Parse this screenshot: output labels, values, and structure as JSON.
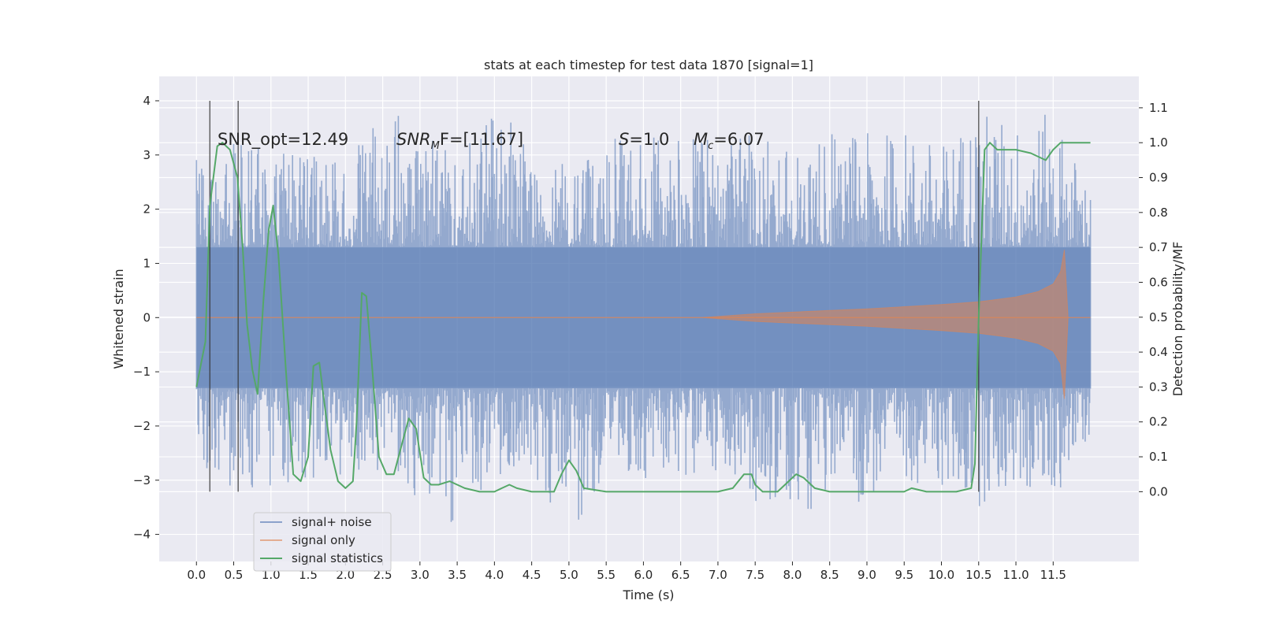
{
  "chart_data": {
    "type": "line",
    "title": "stats at each timestep for test data 1870 [signal=1]",
    "xlabel": "Time (s)",
    "ylabel_left": "Whitened strain",
    "ylabel_right": "Detection probability/MF",
    "xlim": [
      -0.5,
      12.65
    ],
    "ylim_left": [
      -4.5,
      4.45
    ],
    "ylim_right": [
      -0.2,
      1.19
    ],
    "x_ticks": [
      "0.0",
      "0.5",
      "1.0",
      "1.5",
      "2.0",
      "2.5",
      "3.0",
      "3.5",
      "4.0",
      "4.5",
      "5.0",
      "5.5",
      "6.0",
      "6.5",
      "7.0",
      "7.5",
      "8.0",
      "8.5",
      "9.0",
      "9.5",
      "10.0",
      "10.5",
      "11.0",
      "11.5"
    ],
    "y_ticks_left": [
      "4",
      "3",
      "2",
      "1",
      "0",
      "−1",
      "−2",
      "−3",
      "−4"
    ],
    "y_ticks_right": [
      "1.1",
      "1.0",
      "0.9",
      "0.8",
      "0.7",
      "0.6",
      "0.5",
      "0.4",
      "0.3",
      "0.2",
      "0.1",
      "0.0"
    ],
    "grid": true,
    "legend_position": "bottom-left",
    "annotations": {
      "snr_opt": "SNR_opt=12.49",
      "snr_mf_sym": "SNR",
      "snr_mf_sub": "M",
      "snr_mf_rest": "F=[11.67]",
      "s_sym": "S",
      "s_rest": "=1.0",
      "mc_sym": "M",
      "mc_sub": "c",
      "mc_rest": "=6.07"
    },
    "vertical_lines_x": [
      0.18,
      0.56,
      10.5
    ],
    "series": [
      {
        "name": "signal+ noise",
        "color": "#4c72b0",
        "envelope_x": [
          0.0,
          0.5,
          1.0,
          1.5,
          2.0,
          2.5,
          3.0,
          3.5,
          4.0,
          4.5,
          5.0,
          5.5,
          6.0,
          6.5,
          7.0,
          7.5,
          8.0,
          8.5,
          9.0,
          9.5,
          10.0,
          10.5,
          11.0,
          11.5,
          12.0
        ],
        "upper": [
          3.2,
          3.4,
          3.1,
          3.0,
          2.9,
          4.05,
          3.3,
          3.2,
          4.0,
          3.2,
          3.0,
          3.3,
          3.3,
          3.4,
          3.5,
          3.4,
          3.2,
          3.5,
          3.4,
          3.5,
          3.2,
          3.9,
          3.6,
          3.8,
          2.4
        ],
        "lower": [
          -2.7,
          -3.3,
          -3.2,
          -3.0,
          -3.0,
          -3.0,
          -3.4,
          -3.9,
          -3.0,
          -2.8,
          -4.1,
          -3.0,
          -3.1,
          -3.0,
          -3.1,
          -3.4,
          -3.5,
          -3.6,
          -3.4,
          -3.0,
          -3.2,
          -3.5,
          -3.2,
          -3.4,
          -2.2
        ]
      },
      {
        "name": "signal only",
        "color": "#dd8452",
        "envelope_x": [
          6.8,
          7.5,
          8.0,
          8.5,
          9.0,
          9.5,
          10.0,
          10.5,
          11.0,
          11.3,
          11.5,
          11.6,
          11.65,
          11.7
        ],
        "upper": [
          0.0,
          0.07,
          0.1,
          0.13,
          0.16,
          0.2,
          0.24,
          0.29,
          0.38,
          0.48,
          0.62,
          0.85,
          1.25,
          0.0
        ],
        "lower": [
          0.0,
          -0.07,
          -0.1,
          -0.13,
          -0.16,
          -0.2,
          -0.24,
          -0.29,
          -0.38,
          -0.48,
          -0.62,
          -0.85,
          -1.5,
          0.0
        ]
      },
      {
        "name": "signal statistics",
        "color": "#55a868",
        "axis": "right",
        "x": [
          0.0,
          0.12,
          0.18,
          0.28,
          0.35,
          0.45,
          0.55,
          0.62,
          0.68,
          0.75,
          0.82,
          0.9,
          0.97,
          1.03,
          1.1,
          1.2,
          1.3,
          1.4,
          1.5,
          1.57,
          1.65,
          1.72,
          1.8,
          1.9,
          2.0,
          2.1,
          2.15,
          2.22,
          2.28,
          2.35,
          2.45,
          2.55,
          2.65,
          2.75,
          2.85,
          2.95,
          3.05,
          3.15,
          3.25,
          3.4,
          3.6,
          3.8,
          4.0,
          4.1,
          4.2,
          4.3,
          4.5,
          4.8,
          4.9,
          5.0,
          5.1,
          5.2,
          5.5,
          6.0,
          6.5,
          7.0,
          7.2,
          7.35,
          7.45,
          7.5,
          7.6,
          7.8,
          7.95,
          8.05,
          8.15,
          8.3,
          8.5,
          8.8,
          9.2,
          9.5,
          9.6,
          9.8,
          10.0,
          10.2,
          10.4,
          10.45,
          10.5,
          10.58,
          10.65,
          10.75,
          10.85,
          11.0,
          11.2,
          11.4,
          11.5,
          11.6,
          11.8,
          12.0
        ],
        "y": [
          0.3,
          0.43,
          0.82,
          0.99,
          1.0,
          0.98,
          0.9,
          0.7,
          0.48,
          0.35,
          0.28,
          0.55,
          0.75,
          0.82,
          0.68,
          0.35,
          0.05,
          0.03,
          0.1,
          0.36,
          0.37,
          0.25,
          0.12,
          0.03,
          0.01,
          0.03,
          0.2,
          0.57,
          0.56,
          0.38,
          0.1,
          0.05,
          0.05,
          0.13,
          0.21,
          0.18,
          0.04,
          0.02,
          0.02,
          0.03,
          0.01,
          0.0,
          0.0,
          0.01,
          0.02,
          0.01,
          0.0,
          0.0,
          0.05,
          0.09,
          0.06,
          0.01,
          0.0,
          0.0,
          0.0,
          0.0,
          0.01,
          0.05,
          0.05,
          0.02,
          0.0,
          0.0,
          0.03,
          0.05,
          0.04,
          0.01,
          0.0,
          0.0,
          0.0,
          0.0,
          0.01,
          0.0,
          0.0,
          0.0,
          0.01,
          0.08,
          0.5,
          0.98,
          1.0,
          0.98,
          0.98,
          0.98,
          0.97,
          0.95,
          0.98,
          1.0,
          1.0,
          1.0
        ]
      }
    ]
  }
}
